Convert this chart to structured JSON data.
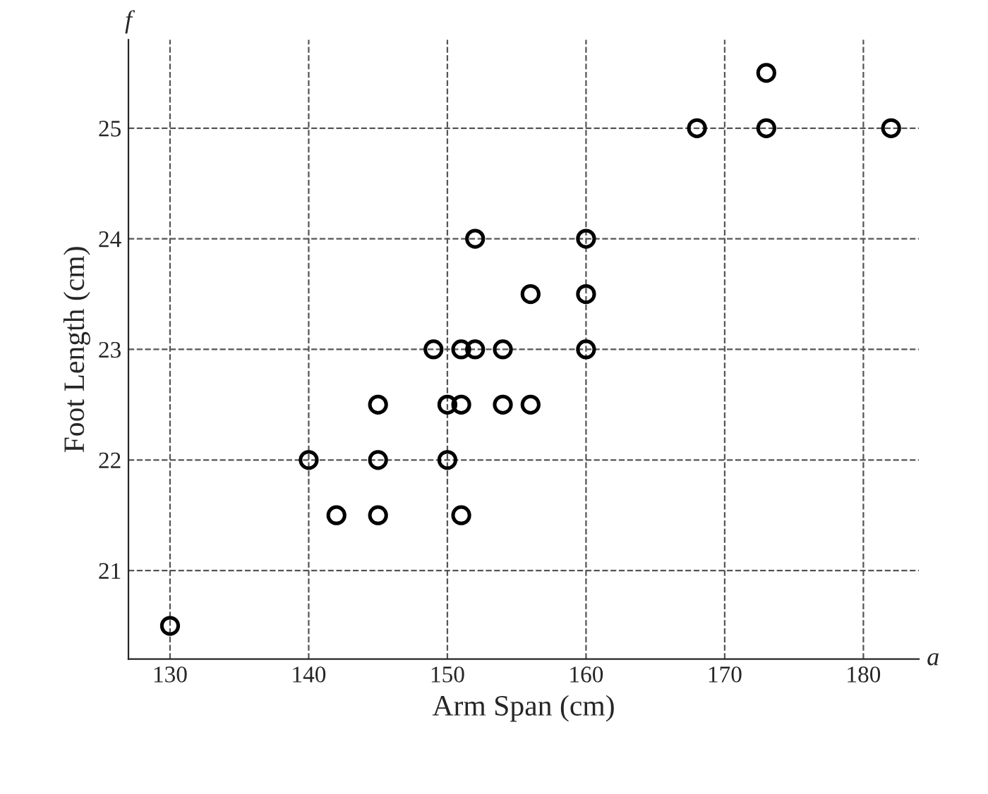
{
  "chart_data": {
    "type": "scatter",
    "xlabel": "Arm Span (cm)",
    "ylabel": "Foot Length (cm)",
    "annotations": [
      "f",
      "a"
    ],
    "x": [
      130,
      140,
      142,
      145,
      145,
      145,
      149,
      150,
      150,
      151,
      151,
      151,
      152,
      152,
      154,
      154,
      156,
      156,
      160,
      160,
      160,
      168,
      173,
      173,
      182
    ],
    "series": [
      {
        "color": "#000000",
        "values": [
          20.5,
          22,
          21.5,
          22.5,
          22,
          21.5,
          23,
          22.5,
          22,
          23,
          22.5,
          21.5,
          23,
          24,
          23,
          22.5,
          23.5,
          22.5,
          24,
          23.5,
          23,
          25,
          25.5,
          25,
          25
        ]
      }
    ],
    "xlim": [
      127,
      184
    ],
    "ylim": [
      20.2,
      25.8
    ],
    "xticks": [
      130,
      140,
      150,
      160,
      170,
      180
    ],
    "yticks": [
      21,
      22,
      23,
      24,
      25
    ],
    "grid": true,
    "marker": "circle"
  }
}
